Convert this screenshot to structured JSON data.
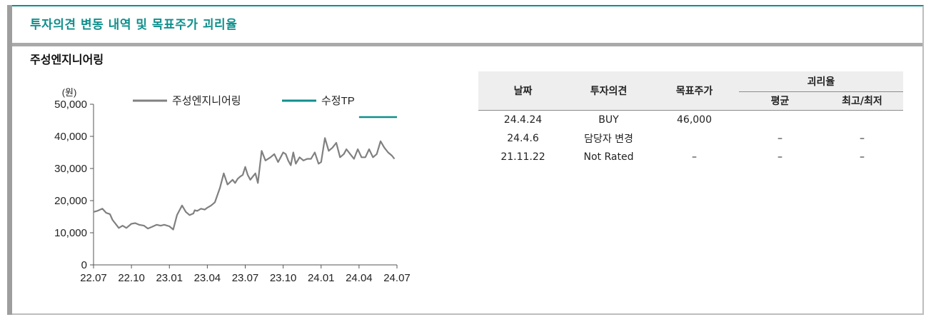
{
  "header": {
    "section_title": "투자의견 변동 내역 및 목표주가 괴리율",
    "company_name": "주성엔지니어링"
  },
  "chart_data": {
    "type": "line",
    "title": "",
    "ylabel": "(원)",
    "xlabel": "",
    "ylim": [
      0,
      50000
    ],
    "yticks": [
      0,
      10000,
      20000,
      30000,
      40000,
      50000
    ],
    "ytick_labels": [
      "0",
      "10,000",
      "20,000",
      "30,000",
      "40,000",
      "50,000"
    ],
    "x_tick_labels": [
      "22.07",
      "22.10",
      "23.01",
      "23.04",
      "23.07",
      "23.10",
      "24.01",
      "24.04",
      "24.07"
    ],
    "xlim_months": [
      0,
      24
    ],
    "grid": false,
    "legend_position": "top",
    "series": [
      {
        "name": "주성엔지니어링",
        "color": "#808080",
        "x": [
          0,
          0.3,
          0.7,
          1.0,
          1.3,
          1.5,
          1.8,
          2.0,
          2.3,
          2.6,
          3.0,
          3.3,
          3.6,
          4.0,
          4.3,
          4.6,
          5.0,
          5.3,
          5.6,
          6.0,
          6.3,
          6.6,
          7.0,
          7.3,
          7.6,
          7.9,
          8.0,
          8.2,
          8.5,
          8.8,
          9.0,
          9.3,
          9.6,
          10.0,
          10.3,
          10.6,
          11.0,
          11.2,
          11.4,
          11.6,
          11.8,
          12.0,
          12.2,
          12.4,
          12.6,
          12.8,
          13.0,
          13.3,
          13.6,
          14.0,
          14.3,
          14.6,
          14.8,
          15.0,
          15.2,
          15.4,
          15.6,
          15.8,
          16.0,
          16.3,
          16.6,
          16.9,
          17.2,
          17.5,
          17.8,
          18.0,
          18.3,
          18.6,
          18.9,
          19.2,
          19.5,
          19.8,
          20.0,
          20.3,
          20.6,
          20.9,
          21.2,
          21.5,
          21.8,
          22.1,
          22.4,
          22.7,
          23.0,
          23.3,
          23.6,
          23.8
        ],
        "values": [
          16500,
          16800,
          17500,
          16200,
          15800,
          14000,
          12500,
          11500,
          12200,
          11500,
          12800,
          13000,
          12500,
          12200,
          11300,
          11800,
          12500,
          12200,
          12500,
          12000,
          11000,
          15500,
          18500,
          16500,
          15500,
          16000,
          17000,
          16800,
          17500,
          17200,
          17800,
          18500,
          19500,
          24000,
          28500,
          25000,
          26500,
          25500,
          26800,
          27500,
          28000,
          30500,
          28000,
          26500,
          27500,
          28500,
          25500,
          35500,
          32500,
          33500,
          34500,
          32000,
          33500,
          35000,
          34500,
          32500,
          31000,
          35000,
          31500,
          33500,
          32500,
          33000,
          33000,
          35000,
          31500,
          32000,
          39500,
          35500,
          36500,
          38000,
          33500,
          34500,
          36000,
          34500,
          33000,
          36000,
          33500,
          33500,
          36000,
          33500,
          34500,
          38500,
          36500,
          35000,
          34000,
          33000
        ]
      },
      {
        "name": "수정TP",
        "color": "#0e8f8c",
        "x": [
          21.0,
          24.0
        ],
        "values": [
          46000,
          46000
        ]
      }
    ]
  },
  "table": {
    "headers": {
      "date": "날짜",
      "opinion": "투자의견",
      "target": "목표주가",
      "disparity": "괴리율",
      "average": "평균",
      "high_low": "최고/최저"
    },
    "rows": [
      {
        "date": "24.4.24",
        "opinion": "BUY",
        "target": "46,000",
        "average": "",
        "high_low": ""
      },
      {
        "date": "24.4.6",
        "opinion": "담당자 변경",
        "target": "",
        "average": "–",
        "high_low": "–"
      },
      {
        "date": "21.11.22",
        "opinion": "Not Rated",
        "target": "–",
        "average": "–",
        "high_low": "–"
      }
    ]
  }
}
